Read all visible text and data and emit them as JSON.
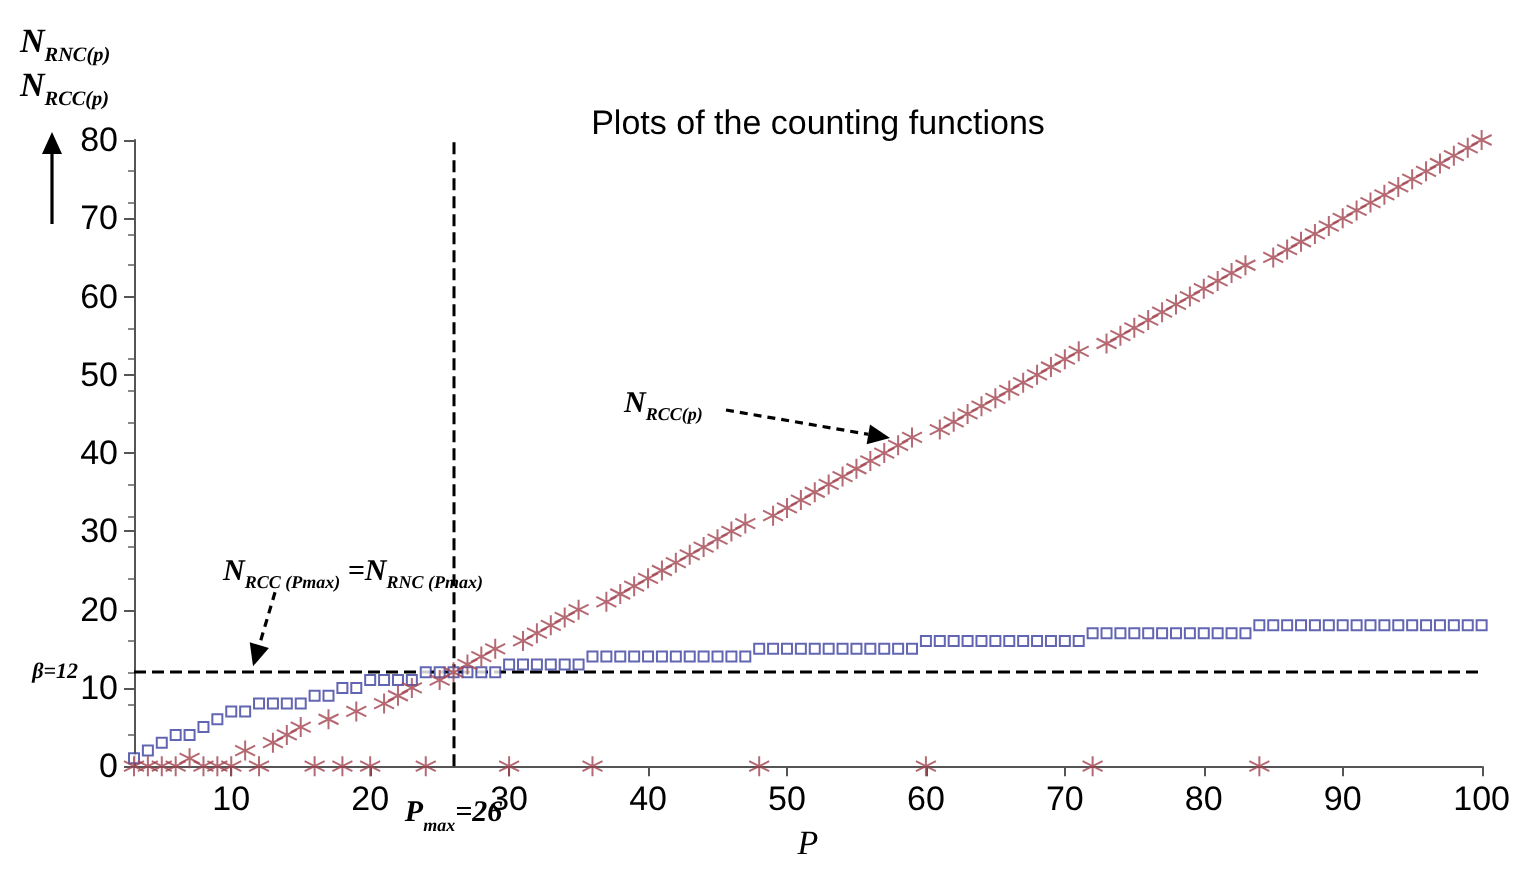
{
  "chart_data": {
    "type": "scatter",
    "title": "Plots of the counting functions",
    "xlabel": "P",
    "ylabel": "N$_{RNC(p)}$\nN$_{RCC(p)}$",
    "x": [
      3,
      4,
      5,
      6,
      7,
      8,
      9,
      10,
      11,
      12,
      13,
      14,
      15,
      16,
      17,
      18,
      19,
      20,
      21,
      22,
      23,
      24,
      25,
      26,
      27,
      28,
      29,
      30,
      31,
      32,
      33,
      34,
      35,
      36,
      37,
      38,
      39,
      40,
      41,
      42,
      43,
      44,
      45,
      46,
      47,
      48,
      49,
      50,
      51,
      52,
      53,
      54,
      55,
      56,
      57,
      58,
      59,
      60,
      61,
      62,
      63,
      64,
      65,
      66,
      67,
      68,
      69,
      70,
      71,
      72,
      73,
      74,
      75,
      76,
      77,
      78,
      79,
      80,
      81,
      82,
      83,
      84,
      85,
      86,
      87,
      88,
      89,
      90,
      91,
      92,
      93,
      94,
      95,
      96,
      97,
      98,
      99,
      100
    ],
    "series": [
      {
        "color": "#3b3f9e",
        "marker": "square",
        "values": [
          1,
          2,
          3,
          4,
          4,
          5,
          6,
          7,
          7,
          8,
          8,
          8,
          8,
          9,
          9,
          10,
          10,
          11,
          11,
          11,
          11,
          12,
          12,
          12,
          12,
          12,
          12,
          13,
          13,
          13,
          13,
          13,
          13,
          14,
          14,
          14,
          14,
          14,
          14,
          14,
          14,
          14,
          14,
          14,
          14,
          15,
          15,
          15,
          15,
          15,
          15,
          15,
          15,
          15,
          15,
          15,
          15,
          16,
          16,
          16,
          16,
          16,
          16,
          16,
          16,
          16,
          16,
          16,
          16,
          17,
          17,
          17,
          17,
          17,
          17,
          17,
          17,
          17,
          17,
          17,
          17,
          18,
          18,
          18,
          18,
          18,
          18,
          18,
          18,
          18,
          18,
          18,
          18,
          18,
          18,
          18,
          18,
          18
        ]
      },
      {
        "color": "#a3434f",
        "marker": "cross",
        "values": [
          0,
          0,
          0,
          0,
          1,
          0,
          0,
          0,
          2,
          0,
          3,
          4,
          5,
          0,
          6,
          0,
          7,
          0,
          8,
          9,
          10,
          0,
          11,
          12,
          13,
          14,
          15,
          0,
          16,
          17,
          18,
          19,
          20,
          0,
          21,
          22,
          23,
          24,
          25,
          26,
          27,
          28,
          29,
          30,
          31,
          0,
          32,
          33,
          34,
          35,
          36,
          37,
          38,
          39,
          40,
          41,
          42,
          0,
          43,
          44,
          45,
          46,
          47,
          48,
          49,
          50,
          51,
          52,
          53,
          0,
          54,
          55,
          56,
          57,
          58,
          59,
          60,
          61,
          62,
          63,
          64,
          0,
          65,
          66,
          67,
          68,
          69,
          70,
          71,
          72,
          73,
          74,
          75,
          76,
          77,
          78,
          79,
          80
        ]
      }
    ],
    "xlim": [
      3,
      100
    ],
    "xticks": [
      10,
      20,
      30,
      40,
      50,
      60,
      70,
      80,
      90,
      100
    ],
    "ylim": [
      0,
      80
    ],
    "yticks": [
      0,
      10,
      20,
      30,
      40,
      50,
      60,
      70,
      80
    ],
    "ref_lines": [
      {
        "axis": "x",
        "value": 26,
        "label": "P$_{max}$=26",
        "line_style": "dashed",
        "color": "#000000"
      },
      {
        "axis": "y",
        "value": 12,
        "label": "β=12",
        "line_style": "dashed",
        "color": "#000000"
      }
    ],
    "annotations": [
      "N$_{RCC(p)}$",
      {
        "text": "N$_{RCC (Pmax)}$ =N$_{RNC (Pmax)}$",
        "x": 12,
        "y": 12
      }
    ]
  }
}
